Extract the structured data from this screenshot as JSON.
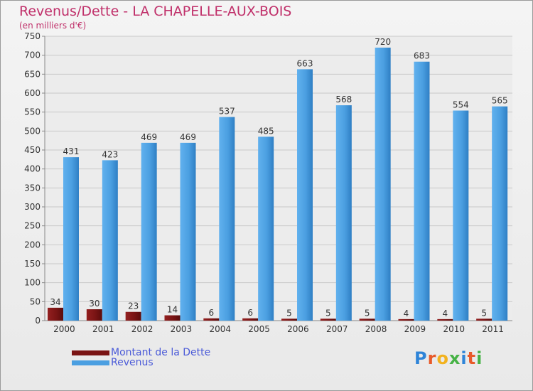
{
  "title": "Revenus/Dette - LA CHAPELLE-AUX-BOIS",
  "subtitle": "(en milliers d'€)",
  "logo": {
    "text": "Proxiti",
    "colors": [
      "#2e84d8",
      "#e85a2a",
      "#f2b21f",
      "#46b245",
      "#2e84d8",
      "#e85a2a",
      "#46b245"
    ]
  },
  "colors": {
    "dette": "#7a1414",
    "revenus": "#4b9fe1",
    "grid": "#c9c9c9",
    "axis_text": "#333333"
  },
  "chart_data": {
    "type": "bar",
    "categories": [
      "2000",
      "2001",
      "2002",
      "2003",
      "2004",
      "2005",
      "2006",
      "2007",
      "2008",
      "2009",
      "2010",
      "2011"
    ],
    "series": [
      {
        "name": "Montant de la Dette",
        "values": [
          34,
          30,
          23,
          14,
          6,
          6,
          5,
          5,
          5,
          4,
          4,
          5
        ]
      },
      {
        "name": "Revenus",
        "values": [
          431,
          423,
          469,
          469,
          537,
          485,
          663,
          568,
          720,
          683,
          554,
          565
        ]
      }
    ],
    "ylim": [
      0,
      750
    ],
    "yticks": [
      0,
      50,
      100,
      150,
      200,
      250,
      300,
      350,
      400,
      450,
      500,
      550,
      600,
      650,
      700,
      750
    ],
    "grid": true,
    "legend": "bottom-left"
  }
}
